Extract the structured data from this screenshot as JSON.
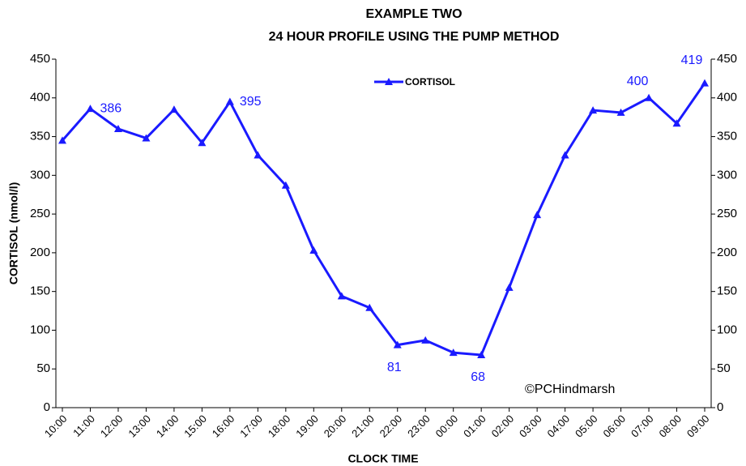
{
  "chart_data": {
    "type": "line",
    "title": "EXAMPLE TWO",
    "subtitle": "24 HOUR PROFILE  USING THE PUMP METHOD",
    "x_label": "CLOCK TIME",
    "y_label": "CORTISOL (nmol/l)",
    "annotation": "©PCHindmarsh",
    "categories": [
      "10:00",
      "11:00",
      "12:00",
      "13:00",
      "14:00",
      "15:00",
      "16:00",
      "17:00",
      "18:00",
      "19:00",
      "20:00",
      "21:00",
      "22:00",
      "23:00",
      "00:00",
      "01:00",
      "02:00",
      "03:00",
      "04:00",
      "05:00",
      "06:00",
      "07:00",
      "08:00",
      "09:00"
    ],
    "series": [
      {
        "name": "CORTISOL",
        "color": "#1a1aff",
        "values": [
          345,
          386,
          360,
          348,
          385,
          342,
          395,
          326,
          287,
          203,
          144,
          129,
          81,
          87,
          71,
          68,
          155,
          249,
          326,
          384,
          381,
          400,
          367,
          419
        ],
        "value_labels": [
          null,
          "386",
          null,
          null,
          null,
          null,
          "395",
          null,
          null,
          null,
          null,
          null,
          "81",
          null,
          null,
          "68",
          null,
          null,
          null,
          null,
          null,
          "400",
          null,
          "419"
        ]
      }
    ],
    "ylim": [
      0,
      450
    ],
    "yticks": [
      0,
      50,
      100,
      150,
      200,
      250,
      300,
      350,
      400,
      450
    ],
    "y2lim": [
      0,
      450
    ],
    "y2ticks": [
      0,
      50,
      100,
      150,
      200,
      250,
      300,
      350,
      400,
      450
    ],
    "legend": "top"
  }
}
